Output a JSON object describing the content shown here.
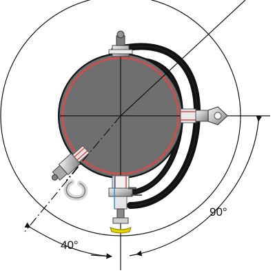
{
  "diagram": {
    "angle_labels": {
      "right_angle": "90°",
      "left_angle": "40°"
    },
    "colors": {
      "line": "#111111",
      "vessel_fill": "#6f6f6f",
      "vessel_outline": "#e04848",
      "hose": "#121212",
      "yellow_mark": "#e5d100"
    }
  }
}
